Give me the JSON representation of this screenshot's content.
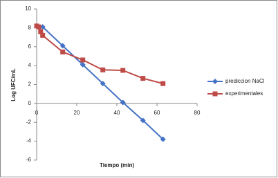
{
  "chart_data": {
    "type": "line",
    "xlabel": "Tiempo (min)",
    "ylabel": "Log UFC/mL",
    "xlim": [
      0,
      80
    ],
    "xticks": [
      0,
      20,
      40,
      60,
      80
    ],
    "ylim": [
      -6,
      10
    ],
    "yticks": [
      -6,
      -4,
      -2,
      0,
      2,
      4,
      6,
      8,
      10
    ],
    "legend": "right",
    "series": [
      {
        "name": "prediccion NaCl",
        "color": "#4472c4",
        "marker": "diamond",
        "x": [
          3,
          13,
          23,
          33,
          43,
          53,
          63
        ],
        "values": [
          8.1,
          6.1,
          4.1,
          2.1,
          0.1,
          -1.8,
          -3.8
        ]
      },
      {
        "name": "experimentales",
        "color": "#be4b48",
        "marker": "square",
        "x": [
          0,
          1,
          2,
          3,
          13,
          23,
          33,
          43,
          53,
          63
        ],
        "values": [
          8.2,
          8.1,
          7.6,
          7.2,
          5.45,
          4.6,
          3.55,
          3.5,
          2.65,
          2.1
        ]
      }
    ]
  }
}
